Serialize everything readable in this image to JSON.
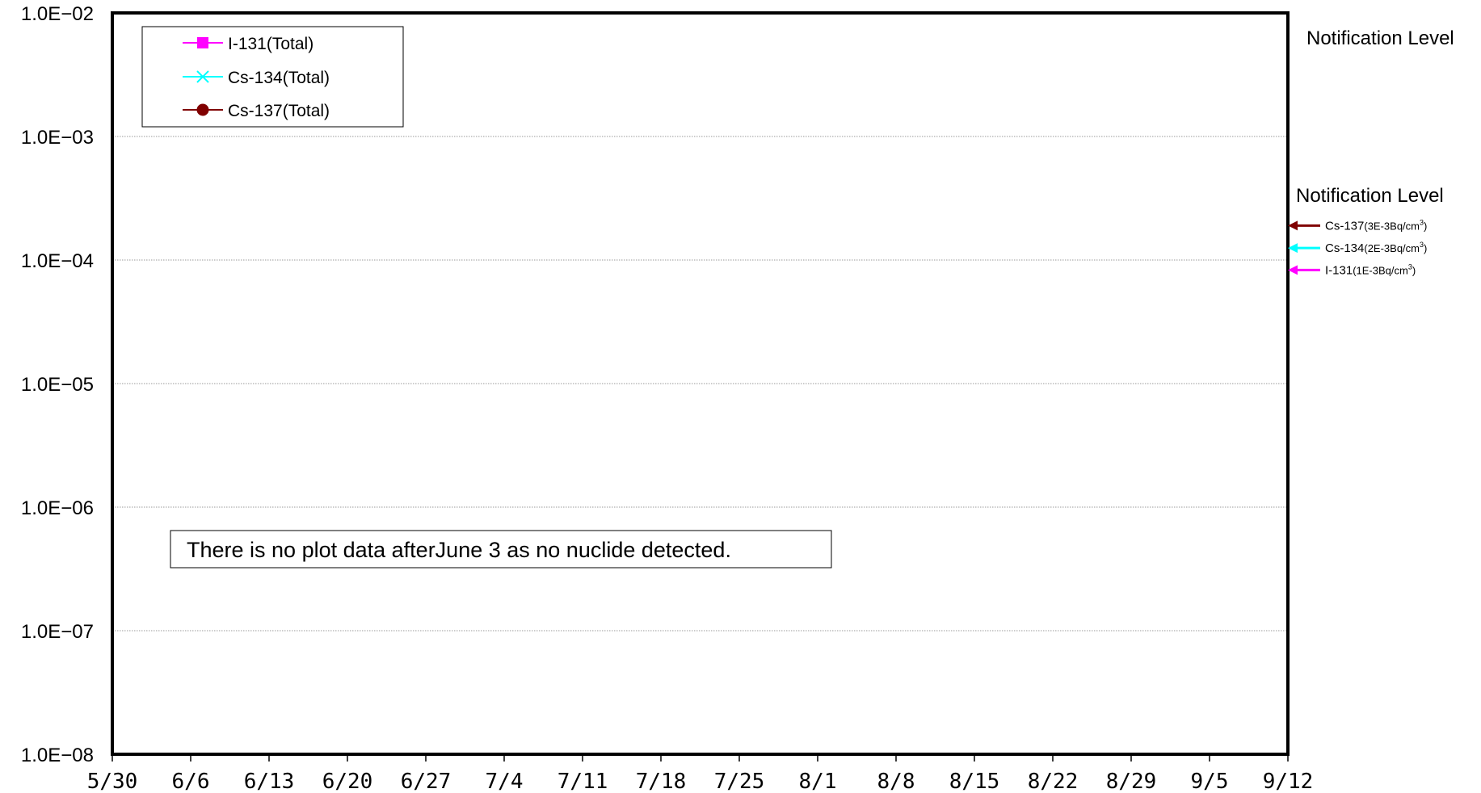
{
  "chart_data": {
    "type": "line",
    "x_axis": {
      "type": "date",
      "range": [
        "5/30",
        "9/12"
      ],
      "tick_labels": [
        "5/30",
        "6/6",
        "6/13",
        "6/20",
        "6/27",
        "7/4",
        "7/11",
        "7/18",
        "7/25",
        "8/1",
        "8/8",
        "8/15",
        "8/22",
        "8/29",
        "9/5",
        "9/12"
      ]
    },
    "y_axis": {
      "scale": "log",
      "range": [
        1e-08,
        0.01
      ],
      "ticks": [
        1e-08,
        1e-07,
        1e-06,
        1e-05,
        0.0001,
        0.001,
        0.01
      ],
      "tick_labels": [
        "1.0E−08",
        "1.0E−07",
        "1.0E−06",
        "1.0E−05",
        "1.0E−04",
        "1.0E−03",
        "1.0E−02"
      ]
    },
    "grid": true,
    "legend_placement": "top-left",
    "series": [
      {
        "name": "I-131(Total)",
        "color": "#ff00ff",
        "marker": "square",
        "values": []
      },
      {
        "name": "Cs-134(Total)",
        "color": "#00ffff",
        "marker": "x",
        "values": []
      },
      {
        "name": "Cs-137(Total)",
        "color": "#800000",
        "marker": "circle",
        "values": []
      }
    ],
    "annotation": "There is no plot data afterJune 3  as no nuclide detected.",
    "notification_levels": {
      "titles": [
        "Notification Level",
        "Notification Level"
      ],
      "items": [
        {
          "label": "Cs-137",
          "value_text": "(3E-3Bq/cm",
          "unit_sup": "3",
          "close": ")",
          "color": "#800000",
          "y_value": 0.00019
        },
        {
          "label": "Cs-134",
          "value_text": "(2E-3Bq/cm",
          "unit_sup": "3",
          "close": ")",
          "color": "#00ffff",
          "y_value": 0.000125
        },
        {
          "label": "I-131",
          "value_text": "(1E-3Bq/cm",
          "unit_sup": "3",
          "close": ")",
          "color": "#ff00ff",
          "y_value": 8.3e-05
        }
      ]
    }
  }
}
